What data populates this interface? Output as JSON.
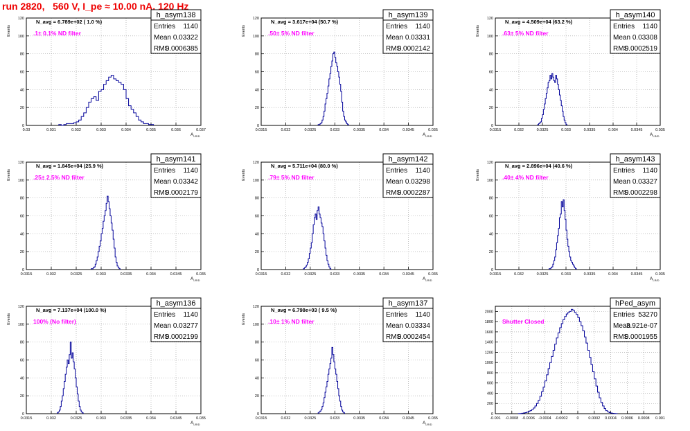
{
  "header": {
    "title": "run 2820,   560 V, I_pe ≈ 10.00 nA, 120 Hz"
  },
  "colors": {
    "title": "#ee0000",
    "annotation": "#ff00ff",
    "histogram": "#000099",
    "grid": "#9a9a9a"
  },
  "chart_data": [
    {
      "type": "bar",
      "name": "h_asym138",
      "navg": "N_avg = 6.789e+02 ( 1.0 %)",
      "annotation": ".1± 0.1% ND filter",
      "stats": [
        [
          "Entries",
          "1140"
        ],
        [
          "Mean",
          "0.03322"
        ],
        [
          "RMS",
          "0.0006385"
        ]
      ],
      "ylabel": "Events",
      "xlabel": "A",
      "xlim": [
        0.03,
        0.037
      ],
      "ylim": [
        0,
        120
      ],
      "xticks": [
        "0.03",
        "0.031",
        "0.032",
        "0.033",
        "0.034",
        "0.035",
        "0.036",
        "0.037"
      ],
      "yticks": [
        "0",
        "20",
        "40",
        "60",
        "80",
        "100",
        "120"
      ],
      "bins": {
        "x0": 0.0313,
        "w": 0.0001,
        "y": [
          1,
          0,
          1,
          2,
          2,
          2,
          3,
          4,
          6,
          10,
          14,
          20,
          26,
          30,
          32,
          28,
          38,
          40,
          46,
          50,
          54,
          56,
          52,
          50,
          48,
          46,
          40,
          30,
          22,
          18,
          14,
          10,
          6,
          4,
          2,
          2,
          1,
          1
        ]
      }
    },
    {
      "type": "bar",
      "name": "h_asym139",
      "navg": "N_avg = 3.617e+04 (50.7 %)",
      "annotation": ".50± 5% ND filter",
      "stats": [
        [
          "Entries",
          "1140"
        ],
        [
          "Mean",
          "0.03331"
        ],
        [
          "RMS",
          "0.0002142"
        ]
      ],
      "ylabel": "Events",
      "xlabel": "A",
      "xlim": [
        0.0315,
        0.035
      ],
      "ylim": [
        0,
        120
      ],
      "xticks": [
        "0.0315",
        "0.032",
        "0.0325",
        "0.033",
        "0.0335",
        "0.034",
        "0.0345",
        "0.035"
      ],
      "yticks": [
        "0",
        "20",
        "40",
        "60",
        "80",
        "100",
        "120"
      ],
      "bins": {
        "x0": 0.03266,
        "w": 2e-05,
        "y": [
          1,
          1,
          2,
          3,
          6,
          10,
          16,
          24,
          30,
          36,
          44,
          52,
          58,
          66,
          72,
          80,
          82,
          76,
          70,
          66,
          60,
          54,
          46,
          38,
          26,
          16,
          10,
          6,
          4,
          2,
          1
        ]
      }
    },
    {
      "type": "bar",
      "name": "h_asym140",
      "navg": "N_avg = 4.509e+04 (63.2 %)",
      "annotation": ".63± 5% ND filter",
      "stats": [
        [
          "Entries",
          "1140"
        ],
        [
          "Mean",
          "0.03308"
        ],
        [
          "RMS",
          "0.0002519"
        ]
      ],
      "ylabel": "Events",
      "xlabel": "A",
      "xlim": [
        0.0315,
        0.035
      ],
      "ylim": [
        0,
        120
      ],
      "xticks": [
        "0.0315",
        "0.032",
        "0.0325",
        "0.033",
        "0.0335",
        "0.034",
        "0.0345",
        "0.035"
      ],
      "yticks": [
        "0",
        "20",
        "40",
        "60",
        "80",
        "100",
        "120"
      ],
      "bins": {
        "x0": 0.0324,
        "w": 2e-05,
        "y": [
          1,
          2,
          3,
          4,
          8,
          12,
          18,
          24,
          30,
          36,
          42,
          48,
          50,
          56,
          52,
          58,
          54,
          50,
          48,
          56,
          52,
          46,
          40,
          34,
          28,
          22,
          16,
          10,
          6,
          3,
          1
        ]
      }
    },
    {
      "type": "bar",
      "name": "h_asym141",
      "navg": "N_avg = 1.845e+04 (25.9 %)",
      "annotation": ".25± 2.5% ND filter",
      "stats": [
        [
          "Entries",
          "1140"
        ],
        [
          "Mean",
          "0.03342"
        ],
        [
          "RMS",
          "0.0002179"
        ]
      ],
      "ylabel": "Events",
      "xlabel": "A",
      "xlim": [
        0.0315,
        0.035
      ],
      "ylim": [
        0,
        120
      ],
      "xticks": [
        "0.0315",
        "0.032",
        "0.0325",
        "0.033",
        "0.0335",
        "0.034",
        "0.0345",
        "0.035"
      ],
      "yticks": [
        "0",
        "20",
        "40",
        "60",
        "80",
        "100",
        "120"
      ],
      "bins": {
        "x0": 0.0328,
        "w": 2e-05,
        "y": [
          1,
          1,
          2,
          3,
          6,
          10,
          14,
          20,
          26,
          32,
          40,
          46,
          54,
          60,
          66,
          74,
          82,
          76,
          68,
          60,
          52,
          44,
          34,
          24,
          14,
          8,
          4,
          2,
          1
        ]
      }
    },
    {
      "type": "bar",
      "name": "h_asym142",
      "navg": "N_avg = 5.711e+04 (80.0 %)",
      "annotation": ".79± 5% ND filter",
      "stats": [
        [
          "Entries",
          "1140"
        ],
        [
          "Mean",
          "0.03298"
        ],
        [
          "RMS",
          "0.0002287"
        ]
      ],
      "ylabel": "Events",
      "xlabel": "A",
      "xlim": [
        0.0315,
        0.035
      ],
      "ylim": [
        0,
        120
      ],
      "xticks": [
        "0.0315",
        "0.032",
        "0.0325",
        "0.033",
        "0.0335",
        "0.034",
        "0.0345",
        "0.035"
      ],
      "yticks": [
        "0",
        "20",
        "40",
        "60",
        "80",
        "100",
        "120"
      ],
      "bins": {
        "x0": 0.03236,
        "w": 2e-05,
        "y": [
          1,
          2,
          3,
          5,
          8,
          12,
          18,
          24,
          30,
          40,
          50,
          58,
          62,
          56,
          66,
          70,
          62,
          58,
          52,
          48,
          40,
          32,
          24,
          16,
          10,
          6,
          3,
          1
        ]
      }
    },
    {
      "type": "bar",
      "name": "h_asym143",
      "navg": "N_avg = 2.896e+04 (40.6 %)",
      "annotation": ".40± 4% ND filter",
      "stats": [
        [
          "Entries",
          "1140"
        ],
        [
          "Mean",
          "0.03327"
        ],
        [
          "RMS",
          "0.0002298"
        ]
      ],
      "ylabel": "Events",
      "xlabel": "A",
      "xlim": [
        0.0315,
        0.035
      ],
      "ylim": [
        0,
        120
      ],
      "xticks": [
        "0.0315",
        "0.032",
        "0.0325",
        "0.033",
        "0.0335",
        "0.034",
        "0.0345",
        "0.035"
      ],
      "yticks": [
        "0",
        "20",
        "40",
        "60",
        "80",
        "100",
        "120"
      ],
      "bins": {
        "x0": 0.03264,
        "w": 2e-05,
        "y": [
          1,
          1,
          2,
          3,
          6,
          10,
          14,
          22,
          30,
          38,
          46,
          58,
          62,
          76,
          70,
          78,
          66,
          56,
          44,
          34,
          26,
          20,
          14,
          10,
          8,
          6,
          4,
          2,
          1
        ]
      }
    },
    {
      "type": "bar",
      "name": "h_asym136",
      "navg": "N_avg = 7.137e+04 (100.0 %)",
      "annotation": "100% (No filter)",
      "stats": [
        [
          "Entries",
          "1140"
        ],
        [
          "Mean",
          "0.03277"
        ],
        [
          "RMS",
          "0.0002199"
        ]
      ],
      "ylabel": "Events",
      "xlabel": "A",
      "xlim": [
        0.0315,
        0.035
      ],
      "ylim": [
        0,
        120
      ],
      "xticks": [
        "0.0315",
        "0.032",
        "0.0325",
        "0.033",
        "0.0335",
        "0.034",
        "0.0345",
        "0.035"
      ],
      "yticks": [
        "0",
        "20",
        "40",
        "60",
        "80",
        "100",
        "120"
      ],
      "bins": {
        "x0": 0.03212,
        "w": 2e-05,
        "y": [
          1,
          2,
          4,
          8,
          14,
          20,
          28,
          36,
          44,
          52,
          60,
          56,
          66,
          80,
          62,
          68,
          58,
          50,
          40,
          30,
          22,
          14,
          8,
          4,
          2,
          1
        ]
      }
    },
    {
      "type": "bar",
      "name": "h_asym137",
      "navg": "N_avg = 6.798e+03 ( 9.5 %)",
      "annotation": ".10± 1% ND filter",
      "stats": [
        [
          "Entries",
          "1140"
        ],
        [
          "Mean",
          "0.03334"
        ],
        [
          "RMS",
          "0.0002454"
        ]
      ],
      "ylabel": "Events",
      "xlabel": "A",
      "xlim": [
        0.0315,
        0.035
      ],
      "ylim": [
        0,
        120
      ],
      "xticks": [
        "0.0315",
        "0.032",
        "0.0325",
        "0.033",
        "0.0335",
        "0.034",
        "0.0345",
        "0.035"
      ],
      "yticks": [
        "0",
        "20",
        "40",
        "60",
        "80",
        "100",
        "120"
      ],
      "bins": {
        "x0": 0.03266,
        "w": 2e-05,
        "y": [
          1,
          2,
          3,
          5,
          8,
          12,
          18,
          24,
          30,
          36,
          44,
          50,
          56,
          62,
          74,
          66,
          58,
          50,
          44,
          36,
          28,
          20,
          14,
          8,
          4,
          2,
          1
        ]
      }
    },
    {
      "type": "bar",
      "name": "hPed_asym",
      "navg": "",
      "annotation": "Shutter Closed",
      "stats": [
        [
          "Entries",
          "53270"
        ],
        [
          "Mean",
          "3.921e-07"
        ],
        [
          "RMS",
          "0.0001955"
        ]
      ],
      "ylabel": "",
      "xlabel": "",
      "xlim": [
        -0.001,
        0.001
      ],
      "ylim": [
        0,
        2100
      ],
      "xticks": [
        "-0.001",
        "-0.0008",
        "-0.0006",
        "-0.0004",
        "-0.0002",
        "0",
        "0.0002",
        "0.0004",
        "0.0006",
        "0.0008",
        "0.001"
      ],
      "yticks": [
        "0",
        "200",
        "400",
        "600",
        "800",
        "1000",
        "1200",
        "1400",
        "1600",
        "1800",
        "2000"
      ],
      "bins": {
        "x0": -0.00072,
        "w": 2e-05,
        "y": [
          2,
          4,
          8,
          14,
          20,
          30,
          44,
          60,
          80,
          110,
          150,
          200,
          260,
          340,
          430,
          520,
          640,
          760,
          880,
          1000,
          1120,
          1240,
          1360,
          1480,
          1580,
          1680,
          1760,
          1840,
          1900,
          1950,
          1980,
          2000,
          2040,
          2020,
          1980,
          1940,
          1880,
          1800,
          1720,
          1620,
          1500,
          1380,
          1240,
          1100,
          960,
          820,
          680,
          540,
          420,
          310,
          220,
          150,
          100,
          60,
          36,
          20,
          12,
          6,
          3,
          1
        ]
      }
    }
  ]
}
